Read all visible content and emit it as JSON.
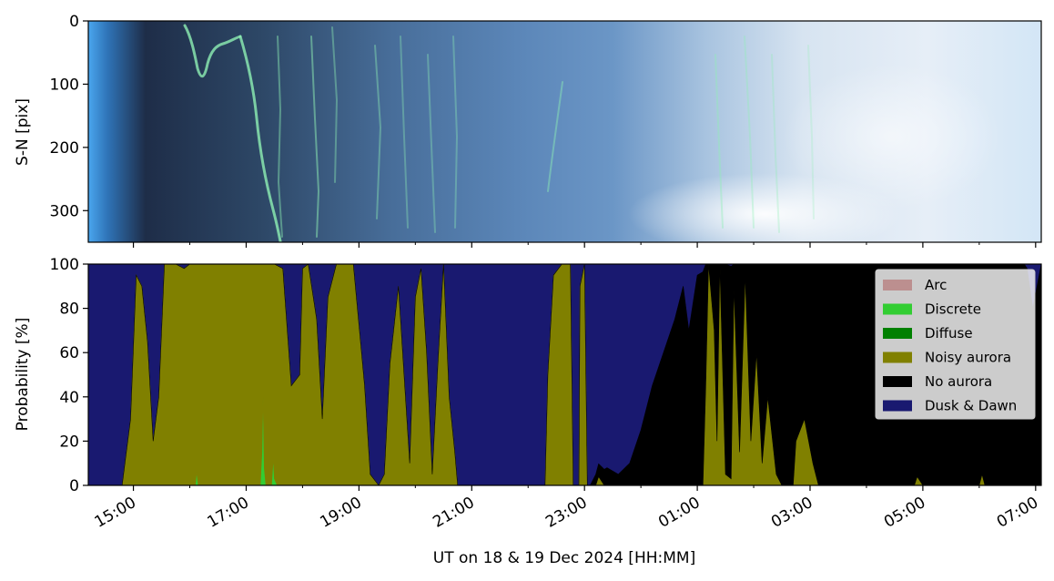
{
  "chart_data": [
    {
      "type": "heatmap",
      "description_kind": "keogram",
      "ylabel": "S-N [pix]",
      "ylim": [
        350,
        0
      ],
      "yticks": [
        "0",
        "100",
        "200",
        "300"
      ],
      "ytick_values": [
        0,
        100,
        200,
        300
      ],
      "xlim_hours": [
        14.2,
        31.1
      ],
      "colors": {
        "dark": "#1c2a44",
        "mid": "#4f7fb4",
        "pale": "#dfe9f4",
        "aurora_green": "#7ee8a8",
        "edge_blue": "#3f9ee6"
      }
    },
    {
      "type": "area",
      "stacked": true,
      "ylabel": "Probability [%]",
      "xlabel": "UT on 18 & 19 Dec 2024 [HH:MM]",
      "ylim": [
        0,
        100
      ],
      "yticks": [
        "0",
        "20",
        "40",
        "60",
        "80",
        "100"
      ],
      "ytick_values": [
        0,
        20,
        40,
        60,
        80,
        100
      ],
      "xlim_hours": [
        14.2,
        31.1
      ],
      "x_tick_labels": [
        "15:00",
        "17:00",
        "19:00",
        "21:00",
        "23:00",
        "01:00",
        "03:00",
        "05:00",
        "07:00"
      ],
      "x_tick_hours": [
        15,
        17,
        19,
        21,
        23,
        25,
        27,
        29,
        31
      ],
      "x_minor_tick_hours": [
        16,
        18,
        20,
        22,
        24,
        26,
        28,
        30
      ],
      "legend_position": "upper-right",
      "legend": [
        {
          "name": "Arc",
          "color": "#bc8f8f"
        },
        {
          "name": "Discrete",
          "color": "#32cd32"
        },
        {
          "name": "Diffuse",
          "color": "#008000"
        },
        {
          "name": "Noisy aurora",
          "color": "#808000"
        },
        {
          "name": "No aurora",
          "color": "#000000"
        },
        {
          "name": "Dusk & Dawn",
          "color": "#191970"
        }
      ],
      "series": [
        {
          "name": "Discrete",
          "color": "#32cd32",
          "points": [
            [
              14.2,
              0
            ],
            [
              16.1,
              0
            ],
            [
              16.12,
              6
            ],
            [
              16.15,
              0
            ],
            [
              17.25,
              0
            ],
            [
              17.28,
              15
            ],
            [
              17.3,
              40
            ],
            [
              17.32,
              8
            ],
            [
              17.35,
              0
            ],
            [
              17.45,
              0
            ],
            [
              17.48,
              12
            ],
            [
              17.5,
              3
            ],
            [
              17.55,
              0
            ],
            [
              31.1,
              0
            ]
          ]
        },
        {
          "name": "Noisy aurora",
          "color": "#808000",
          "points": [
            [
              14.2,
              0
            ],
            [
              14.8,
              0
            ],
            [
              14.95,
              30
            ],
            [
              15.05,
              95
            ],
            [
              15.15,
              90
            ],
            [
              15.25,
              65
            ],
            [
              15.35,
              20
            ],
            [
              15.45,
              40
            ],
            [
              15.55,
              100
            ],
            [
              15.75,
              100
            ],
            [
              15.9,
              98
            ],
            [
              16.0,
              100
            ],
            [
              16.3,
              100
            ],
            [
              16.7,
              100
            ],
            [
              17.1,
              100
            ],
            [
              17.5,
              100
            ],
            [
              17.65,
              98
            ],
            [
              17.8,
              45
            ],
            [
              17.95,
              50
            ],
            [
              18.0,
              98
            ],
            [
              18.1,
              100
            ],
            [
              18.25,
              75
            ],
            [
              18.35,
              30
            ],
            [
              18.45,
              85
            ],
            [
              18.6,
              100
            ],
            [
              18.9,
              100
            ],
            [
              19.1,
              45
            ],
            [
              19.2,
              5
            ],
            [
              19.35,
              0
            ],
            [
              19.45,
              5
            ],
            [
              19.55,
              55
            ],
            [
              19.7,
              90
            ],
            [
              19.8,
              50
            ],
            [
              19.9,
              10
            ],
            [
              20.0,
              85
            ],
            [
              20.1,
              98
            ],
            [
              20.2,
              60
            ],
            [
              20.3,
              5
            ],
            [
              20.4,
              55
            ],
            [
              20.5,
              100
            ],
            [
              20.6,
              40
            ],
            [
              20.7,
              15
            ],
            [
              20.75,
              0
            ],
            [
              22.3,
              0
            ],
            [
              22.35,
              50
            ],
            [
              22.45,
              95
            ],
            [
              22.6,
              100
            ],
            [
              22.75,
              100
            ],
            [
              22.8,
              0
            ],
            [
              22.9,
              0
            ],
            [
              22.92,
              90
            ],
            [
              23.0,
              100
            ],
            [
              23.05,
              0
            ],
            [
              23.2,
              0
            ],
            [
              23.25,
              4
            ],
            [
              23.35,
              0
            ],
            [
              25.1,
              0
            ],
            [
              25.15,
              45
            ],
            [
              25.2,
              100
            ],
            [
              25.3,
              70
            ],
            [
              25.35,
              20
            ],
            [
              25.4,
              100
            ],
            [
              25.5,
              5
            ],
            [
              25.6,
              3
            ],
            [
              25.65,
              90
            ],
            [
              25.75,
              15
            ],
            [
              25.85,
              95
            ],
            [
              25.95,
              20
            ],
            [
              26.05,
              60
            ],
            [
              26.15,
              10
            ],
            [
              26.25,
              40
            ],
            [
              26.4,
              5
            ],
            [
              26.5,
              0
            ],
            [
              26.7,
              0
            ],
            [
              26.75,
              20
            ],
            [
              26.9,
              30
            ],
            [
              27.05,
              10
            ],
            [
              27.15,
              0
            ],
            [
              28.85,
              0
            ],
            [
              28.9,
              4
            ],
            [
              29.0,
              0
            ],
            [
              30.0,
              0
            ],
            [
              30.05,
              5
            ],
            [
              30.1,
              0
            ],
            [
              31.1,
              0
            ]
          ]
        },
        {
          "name": "No aurora",
          "color": "#000000",
          "points": [
            [
              14.2,
              0
            ],
            [
              23.1,
              0
            ],
            [
              23.2,
              5
            ],
            [
              23.4,
              8
            ],
            [
              23.6,
              5
            ],
            [
              23.8,
              10
            ],
            [
              24.0,
              25
            ],
            [
              24.2,
              45
            ],
            [
              24.4,
              60
            ],
            [
              24.6,
              75
            ],
            [
              24.75,
              90
            ],
            [
              24.85,
              70
            ],
            [
              25.0,
              95
            ],
            [
              25.2,
              98
            ],
            [
              25.4,
              97
            ],
            [
              25.6,
              96
            ],
            [
              25.8,
              98
            ],
            [
              26.0,
              99
            ],
            [
              26.5,
              100
            ],
            [
              27.0,
              100
            ],
            [
              28.0,
              100
            ],
            [
              29.0,
              100
            ],
            [
              30.0,
              100
            ],
            [
              30.6,
              100
            ],
            [
              30.8,
              100
            ],
            [
              30.85,
              98
            ],
            [
              30.95,
              80
            ],
            [
              31.1,
              100
            ]
          ]
        }
      ]
    }
  ]
}
